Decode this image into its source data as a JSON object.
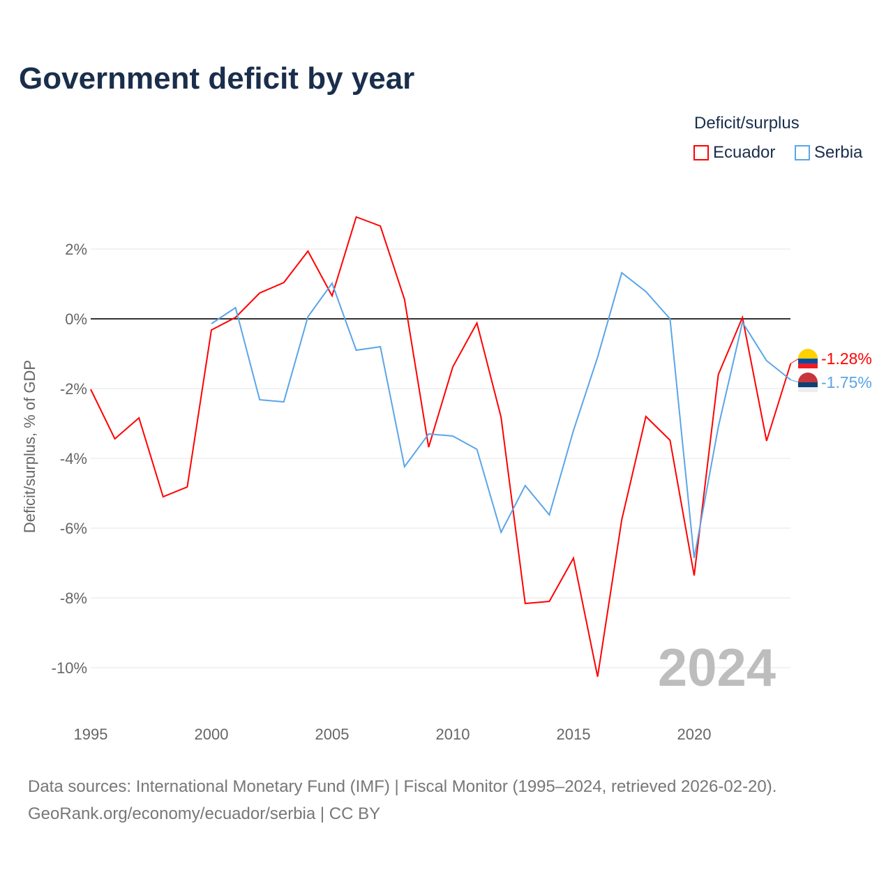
{
  "chart_data": {
    "type": "line",
    "title": "Government deficit by year",
    "ylabel": "Deficit/surplus, % of GDP",
    "xlabel": "",
    "xlim": [
      1995,
      2024
    ],
    "ylim": [
      -11,
      4
    ],
    "x_ticks": [
      1995,
      2000,
      2005,
      2010,
      2015,
      2020
    ],
    "y_ticks": [
      2,
      0,
      -2,
      -4,
      -6,
      -8,
      -10
    ],
    "y_tick_labels": [
      "2%",
      "0%",
      "-2%",
      "-4%",
      "-6%",
      "-8%",
      "-10%"
    ],
    "x_tick_labels": [
      "1995",
      "2000",
      "2005",
      "2010",
      "2015",
      "2020"
    ],
    "legend_title": "Deficit/surplus",
    "legend_position": "top-right",
    "year_watermark": "2024",
    "grid": true,
    "series": [
      {
        "name": "Ecuador",
        "color": "#ff0000",
        "end_label": "-1.28%",
        "x": [
          1995,
          1996,
          1997,
          1998,
          1999,
          2000,
          2001,
          2002,
          2003,
          2004,
          2005,
          2006,
          2007,
          2008,
          2009,
          2010,
          2011,
          2012,
          2013,
          2014,
          2015,
          2016,
          2017,
          2018,
          2019,
          2020,
          2021,
          2022,
          2023,
          2024
        ],
        "values": [
          -2.02,
          -3.44,
          -2.84,
          -5.1,
          -4.82,
          -0.32,
          0.04,
          0.74,
          1.04,
          1.94,
          0.66,
          2.92,
          2.66,
          0.56,
          -3.68,
          -1.38,
          -0.12,
          -2.82,
          -8.16,
          -8.1,
          -6.86,
          -10.26,
          -5.76,
          -2.8,
          -3.48,
          -7.36,
          -1.6,
          0.04,
          -3.5,
          -1.28
        ]
      },
      {
        "name": "Serbia",
        "color": "#5aa5e8",
        "end_label": "-1.75%",
        "x": [
          2000,
          2001,
          2002,
          2003,
          2004,
          2005,
          2006,
          2007,
          2008,
          2009,
          2010,
          2011,
          2012,
          2013,
          2014,
          2015,
          2016,
          2017,
          2018,
          2019,
          2020,
          2021,
          2022,
          2023,
          2024
        ],
        "values": [
          -0.14,
          0.32,
          -2.32,
          -2.38,
          0.06,
          1.02,
          -0.9,
          -0.8,
          -4.24,
          -3.3,
          -3.36,
          -3.74,
          -6.12,
          -4.78,
          -5.62,
          -3.2,
          -1.1,
          1.32,
          0.78,
          0.0,
          -6.86,
          -3.1,
          -0.1,
          -1.2,
          -1.75
        ]
      }
    ]
  },
  "source_line1": "Data sources: International Monetary Fund (IMF) | Fiscal Monitor (1995–2024, retrieved 2026-02-20).",
  "source_line2": "GeoRank.org/economy/ecuador/serbia | CC BY"
}
